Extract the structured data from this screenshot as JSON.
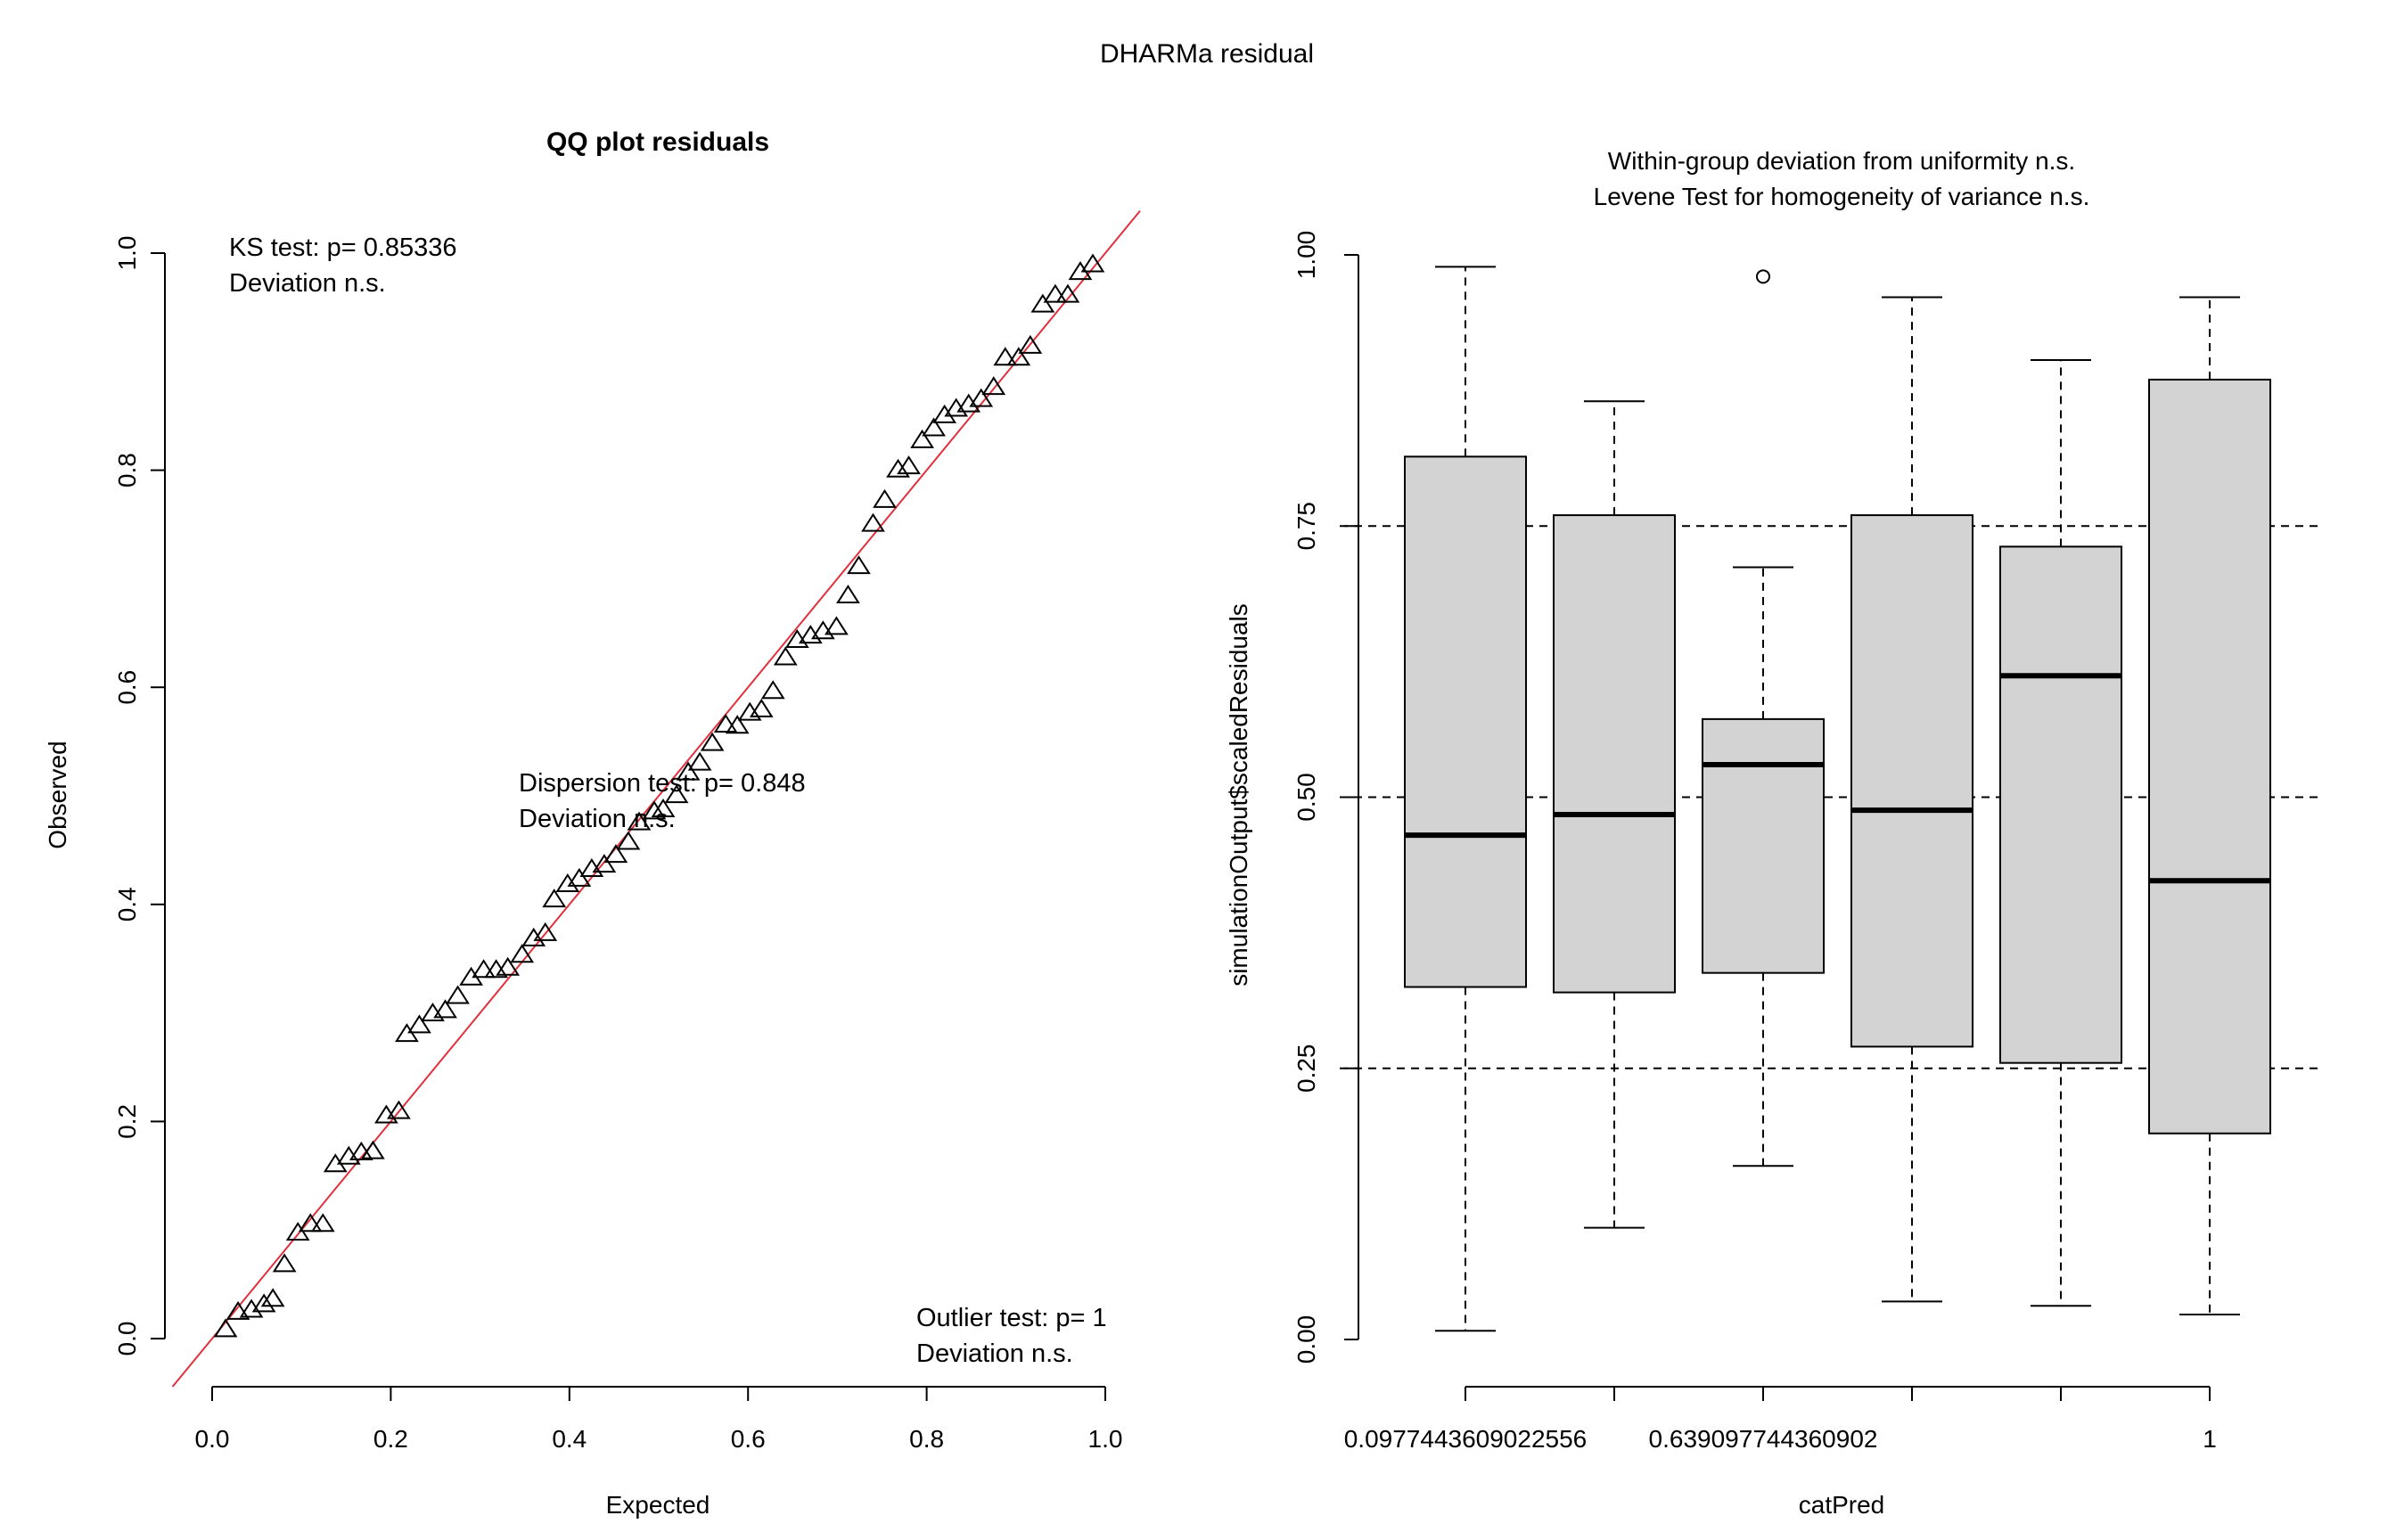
{
  "figure": {
    "title": "DHARMa residual"
  },
  "chart_data": [
    {
      "type": "scatter",
      "title": "QQ plot residuals",
      "xlabel": "Expected",
      "ylabel": "Observed",
      "xlim": [
        0,
        1
      ],
      "ylim": [
        0,
        1
      ],
      "x_ticks": [
        "0.0",
        "0.2",
        "0.4",
        "0.6",
        "0.8",
        "1.0"
      ],
      "y_ticks": [
        "0.0",
        "0.2",
        "0.4",
        "0.6",
        "0.8",
        "1.0"
      ],
      "grid": false,
      "reference_line": {
        "slope": 1,
        "intercept": 0,
        "color": "#e0303c"
      },
      "marker": "open-triangle",
      "points": [
        [
          0.015,
          0.008
        ],
        [
          0.029,
          0.024
        ],
        [
          0.044,
          0.026
        ],
        [
          0.058,
          0.031
        ],
        [
          0.068,
          0.036
        ],
        [
          0.081,
          0.068
        ],
        [
          0.096,
          0.097
        ],
        [
          0.11,
          0.105
        ],
        [
          0.124,
          0.105
        ],
        [
          0.138,
          0.16
        ],
        [
          0.153,
          0.167
        ],
        [
          0.167,
          0.171
        ],
        [
          0.18,
          0.172
        ],
        [
          0.195,
          0.205
        ],
        [
          0.209,
          0.209
        ],
        [
          0.218,
          0.28
        ],
        [
          0.232,
          0.288
        ],
        [
          0.247,
          0.299
        ],
        [
          0.261,
          0.302
        ],
        [
          0.275,
          0.315
        ],
        [
          0.29,
          0.332
        ],
        [
          0.304,
          0.339
        ],
        [
          0.318,
          0.339
        ],
        [
          0.331,
          0.341
        ],
        [
          0.347,
          0.353
        ],
        [
          0.36,
          0.368
        ],
        [
          0.373,
          0.373
        ],
        [
          0.383,
          0.404
        ],
        [
          0.398,
          0.418
        ],
        [
          0.411,
          0.423
        ],
        [
          0.425,
          0.432
        ],
        [
          0.439,
          0.436
        ],
        [
          0.452,
          0.445
        ],
        [
          0.466,
          0.457
        ],
        [
          0.478,
          0.475
        ],
        [
          0.495,
          0.485
        ],
        [
          0.505,
          0.487
        ],
        [
          0.52,
          0.5
        ],
        [
          0.533,
          0.521
        ],
        [
          0.546,
          0.53
        ],
        [
          0.56,
          0.548
        ],
        [
          0.575,
          0.565
        ],
        [
          0.588,
          0.564
        ],
        [
          0.602,
          0.576
        ],
        [
          0.615,
          0.579
        ],
        [
          0.628,
          0.596
        ],
        [
          0.642,
          0.627
        ],
        [
          0.655,
          0.643
        ],
        [
          0.67,
          0.647
        ],
        [
          0.684,
          0.651
        ],
        [
          0.699,
          0.655
        ],
        [
          0.712,
          0.684
        ],
        [
          0.724,
          0.711
        ],
        [
          0.74,
          0.75
        ],
        [
          0.753,
          0.772
        ],
        [
          0.768,
          0.8
        ],
        [
          0.78,
          0.803
        ],
        [
          0.795,
          0.827
        ],
        [
          0.808,
          0.838
        ],
        [
          0.82,
          0.85
        ],
        [
          0.833,
          0.856
        ],
        [
          0.847,
          0.86
        ],
        [
          0.861,
          0.865
        ],
        [
          0.875,
          0.876
        ],
        [
          0.888,
          0.903
        ],
        [
          0.903,
          0.903
        ],
        [
          0.916,
          0.914
        ],
        [
          0.93,
          0.952
        ],
        [
          0.944,
          0.961
        ],
        [
          0.958,
          0.961
        ],
        [
          0.972,
          0.982
        ],
        [
          0.986,
          0.989
        ]
      ],
      "annotations": [
        {
          "line1": "KS test: p= 0.85336",
          "line2": "Deviation  n.s.",
          "x": 0.02,
          "y": 0.995
        },
        {
          "line1": "Dispersion test: p= 0.848",
          "line2": "Deviation  n.s.",
          "x": 0.345,
          "y": 0.52
        },
        {
          "line1": "Outlier test: p= 1",
          "line2": "Deviation  n.s.",
          "x": 0.79,
          "y": 0.02
        }
      ]
    },
    {
      "type": "boxplot",
      "title": "Within-group deviation from uniformity n.s.",
      "subtitle": "Levene Test for homogeneity of variance n.s.",
      "xlabel": "catPred",
      "ylabel": "simulationOutput$scaledResiduals",
      "ylim": [
        0,
        1
      ],
      "y_ticks": [
        "0.00",
        "0.25",
        "0.50",
        "0.75",
        "1.00"
      ],
      "x_tick_labels": [
        "0.0977443609022556",
        "",
        "0.639097744360902",
        "",
        "",
        "1"
      ],
      "reference_lines_y": [
        0.25,
        0.5,
        0.75
      ],
      "box_fill": "#d3d3d3",
      "groups": [
        {
          "whisker_low": 0.008,
          "q1": 0.325,
          "median": 0.465,
          "q3": 0.814,
          "whisker_high": 0.989,
          "outliers": []
        },
        {
          "whisker_low": 0.103,
          "q1": 0.32,
          "median": 0.484,
          "q3": 0.76,
          "whisker_high": 0.865,
          "outliers": []
        },
        {
          "whisker_low": 0.16,
          "q1": 0.338,
          "median": 0.53,
          "q3": 0.572,
          "whisker_high": 0.712,
          "outliers": [
            0.98
          ]
        },
        {
          "whisker_low": 0.035,
          "q1": 0.27,
          "median": 0.488,
          "q3": 0.76,
          "whisker_high": 0.961,
          "outliers": []
        },
        {
          "whisker_low": 0.031,
          "q1": 0.255,
          "median": 0.612,
          "q3": 0.731,
          "whisker_high": 0.903,
          "outliers": []
        },
        {
          "whisker_low": 0.023,
          "q1": 0.19,
          "median": 0.423,
          "q3": 0.885,
          "whisker_high": 0.961,
          "outliers": []
        }
      ]
    }
  ]
}
